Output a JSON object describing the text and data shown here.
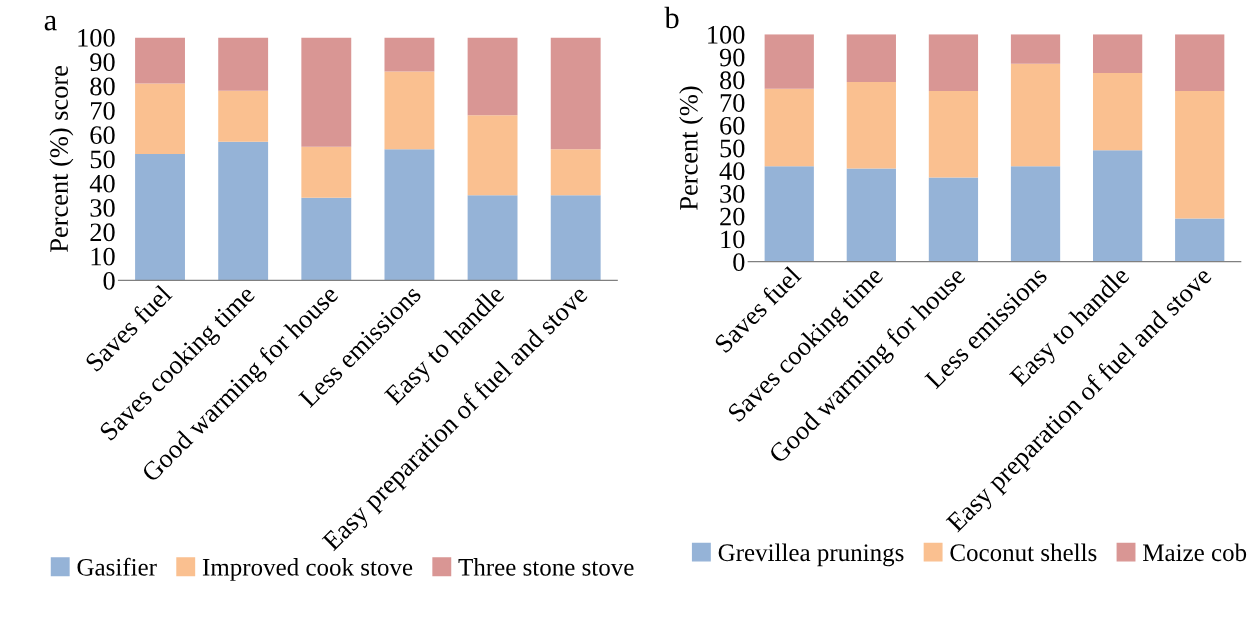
{
  "chart_data": [
    {
      "type": "bar",
      "stacked": true,
      "ylabel": "Percent (%) score",
      "annotations": [
        "a"
      ],
      "categories": [
        "Saves fuel",
        "Saves cooking time",
        "Good warming for house",
        "Less emissions",
        "Easy to handle",
        "Easy preparation of fuel and stove"
      ],
      "series": [
        {
          "name": "Gasifier",
          "color": "#95b3d7",
          "values": [
            52,
            57,
            34,
            54,
            35,
            35
          ]
        },
        {
          "name": "Improved cook stove",
          "color": "#fac090",
          "values": [
            29,
            21,
            21,
            32,
            33,
            19
          ]
        },
        {
          "name": "Three stone stove",
          "color": "#d99694",
          "values": [
            19,
            22,
            45,
            14,
            32,
            46
          ]
        }
      ],
      "ylim": [
        0,
        100
      ],
      "yticks": [
        0,
        10,
        20,
        30,
        40,
        50,
        60,
        70,
        80,
        90,
        100
      ],
      "legend": "bottom",
      "grid": false
    },
    {
      "type": "bar",
      "stacked": true,
      "ylabel": "Percent (%)",
      "annotations": [
        "b"
      ],
      "categories": [
        "Saves fuel",
        "Saves cooking time",
        "Good warming for house",
        "Less emissions",
        "Easy to handle",
        "Easy preparation of fuel and stove"
      ],
      "series": [
        {
          "name": "Grevillea prunings",
          "color": "#95b3d7",
          "values": [
            42,
            41,
            37,
            42,
            49,
            19
          ]
        },
        {
          "name": "Coconut shells",
          "color": "#fac090",
          "values": [
            34,
            38,
            38,
            45,
            34,
            56
          ]
        },
        {
          "name": "Maize cob",
          "color": "#d99694",
          "values": [
            24,
            21,
            25,
            13,
            17,
            25
          ]
        }
      ],
      "ylim": [
        0,
        100
      ],
      "yticks": [
        0,
        10,
        20,
        30,
        40,
        50,
        60,
        70,
        80,
        90,
        100
      ],
      "legend": "bottom",
      "grid": false
    }
  ]
}
